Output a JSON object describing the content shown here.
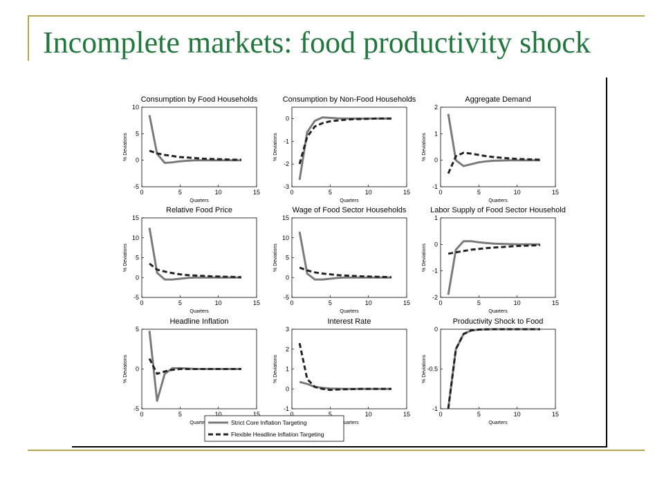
{
  "slide": {
    "title": "Incomplete markets: food productivity shock",
    "accent_color": "#1e7a3a",
    "rule_color": "#b5a64a"
  },
  "legend": {
    "strict": "Strict Core Inflation Targeting",
    "flexible": "Flexible Headline Inflation Targeting"
  },
  "chart_data": [
    {
      "type": "line",
      "title": "Consumption by Food Households",
      "xlabel": "Quarters",
      "ylabel": "% Deviations",
      "xlim": [
        0,
        15
      ],
      "ylim": [
        -5,
        10
      ],
      "xticks": [
        0,
        5,
        10,
        15
      ],
      "yticks": [
        -5,
        0,
        5,
        10
      ],
      "x": [
        1,
        2,
        3,
        4,
        5,
        6,
        7,
        8,
        9,
        10,
        11,
        12,
        13
      ],
      "series": [
        {
          "name": "Strict Core Inflation Targeting",
          "values": [
            8.5,
            1.2,
            -0.5,
            -0.4,
            -0.2,
            -0.1,
            0,
            0,
            0,
            0,
            0,
            0,
            0
          ]
        },
        {
          "name": "Flexible Headline Inflation Targeting",
          "values": [
            1.8,
            1.3,
            1.0,
            0.8,
            0.6,
            0.5,
            0.4,
            0.3,
            0.25,
            0.2,
            0.15,
            0.1,
            0.1
          ]
        }
      ]
    },
    {
      "type": "line",
      "title": "Consumption by Non-Food Households",
      "xlabel": "Quarters",
      "ylabel": "% Deviations",
      "xlim": [
        0,
        15
      ],
      "ylim": [
        -3,
        0.5
      ],
      "xticks": [
        0,
        5,
        10,
        15
      ],
      "yticks": [
        -3,
        -2,
        -1,
        0
      ],
      "x": [
        1,
        2,
        3,
        4,
        5,
        6,
        7,
        8,
        9,
        10,
        11,
        12,
        13
      ],
      "series": [
        {
          "name": "Strict Core Inflation Targeting",
          "values": [
            -2.7,
            -0.6,
            -0.1,
            0.05,
            0.03,
            0.01,
            0,
            0,
            0,
            0,
            0,
            0,
            0
          ]
        },
        {
          "name": "Flexible Headline Inflation Targeting",
          "values": [
            -2.0,
            -0.8,
            -0.35,
            -0.2,
            -0.12,
            -0.08,
            -0.05,
            -0.03,
            -0.02,
            -0.01,
            0,
            0,
            0
          ]
        }
      ]
    },
    {
      "type": "line",
      "title": "Aggregate Demand",
      "xlabel": "Quarters",
      "ylabel": "% Deviations",
      "xlim": [
        0,
        15
      ],
      "ylim": [
        -1,
        2
      ],
      "xticks": [
        0,
        5,
        10,
        15
      ],
      "yticks": [
        -1,
        0,
        1,
        2
      ],
      "x": [
        1,
        2,
        3,
        4,
        5,
        6,
        7,
        8,
        9,
        10,
        11,
        12,
        13
      ],
      "series": [
        {
          "name": "Strict Core Inflation Targeting",
          "values": [
            1.75,
            0.0,
            -0.22,
            -0.15,
            -0.08,
            -0.04,
            -0.02,
            -0.01,
            0,
            0,
            0,
            0,
            0
          ]
        },
        {
          "name": "Flexible Headline Inflation Targeting",
          "values": [
            -0.5,
            0.15,
            0.28,
            0.25,
            0.2,
            0.15,
            0.12,
            0.09,
            0.07,
            0.05,
            0.04,
            0.03,
            0.02
          ]
        }
      ]
    },
    {
      "type": "line",
      "title": "Relative Food Price",
      "xlabel": "Quarters",
      "ylabel": "% Deviations",
      "xlim": [
        0,
        15
      ],
      "ylim": [
        -5,
        15
      ],
      "xticks": [
        0,
        5,
        10,
        15
      ],
      "yticks": [
        -5,
        0,
        5,
        10,
        15
      ],
      "x": [
        1,
        2,
        3,
        4,
        5,
        6,
        7,
        8,
        9,
        10,
        11,
        12,
        13
      ],
      "series": [
        {
          "name": "Strict Core Inflation Targeting",
          "values": [
            12.5,
            1.2,
            -0.5,
            -0.5,
            -0.3,
            -0.1,
            0,
            0,
            0,
            0,
            0,
            0,
            0
          ]
        },
        {
          "name": "Flexible Headline Inflation Targeting",
          "values": [
            3.5,
            2.0,
            1.5,
            1.1,
            0.8,
            0.6,
            0.5,
            0.4,
            0.3,
            0.25,
            0.2,
            0.15,
            0.1
          ]
        }
      ]
    },
    {
      "type": "line",
      "title": "Wage of Food Sector Households",
      "xlabel": "Quarters",
      "ylabel": "% Deviations",
      "xlim": [
        0,
        15
      ],
      "ylim": [
        -5,
        15
      ],
      "xticks": [
        0,
        5,
        10,
        15
      ],
      "yticks": [
        -5,
        0,
        5,
        10,
        15
      ],
      "x": [
        1,
        2,
        3,
        4,
        5,
        6,
        7,
        8,
        9,
        10,
        11,
        12,
        13
      ],
      "series": [
        {
          "name": "Strict Core Inflation Targeting",
          "values": [
            11.5,
            1.0,
            -0.5,
            -0.5,
            -0.3,
            -0.1,
            0,
            0,
            0,
            0,
            0,
            0,
            0
          ]
        },
        {
          "name": "Flexible Headline Inflation Targeting",
          "values": [
            2.5,
            1.8,
            1.3,
            1.0,
            0.8,
            0.6,
            0.5,
            0.4,
            0.3,
            0.25,
            0.2,
            0.15,
            0.1
          ]
        }
      ]
    },
    {
      "type": "line",
      "title": "Labor Supply of Food Sector Household",
      "xlabel": "Quarters",
      "ylabel": "% Deviations",
      "xlim": [
        0,
        15
      ],
      "ylim": [
        -2,
        1
      ],
      "xticks": [
        0,
        5,
        10,
        15
      ],
      "yticks": [
        -2,
        -1,
        0,
        1
      ],
      "x": [
        1,
        2,
        3,
        4,
        5,
        6,
        7,
        8,
        9,
        10,
        11,
        12,
        13
      ],
      "series": [
        {
          "name": "Strict Core Inflation Targeting",
          "values": [
            -1.9,
            -0.2,
            0.12,
            0.12,
            0.08,
            0.05,
            0.03,
            0.02,
            0.01,
            0,
            0,
            0,
            0
          ]
        },
        {
          "name": "Flexible Headline Inflation Targeting",
          "values": [
            -0.35,
            -0.3,
            -0.25,
            -0.2,
            -0.17,
            -0.14,
            -0.12,
            -0.1,
            -0.08,
            -0.06,
            -0.05,
            -0.04,
            -0.03
          ]
        }
      ]
    },
    {
      "type": "line",
      "title": "Headline Inflation",
      "xlabel": "Quarters",
      "ylabel": "% Deviations",
      "xlim": [
        0,
        15
      ],
      "ylim": [
        -5,
        5
      ],
      "xticks": [
        0,
        5,
        10,
        15
      ],
      "yticks": [
        -5,
        0,
        5
      ],
      "x": [
        1,
        2,
        3,
        4,
        5,
        6,
        7,
        8,
        9,
        10,
        11,
        12,
        13
      ],
      "series": [
        {
          "name": "Strict Core Inflation Targeting",
          "values": [
            4.8,
            -4.0,
            -0.6,
            0.1,
            0.1,
            0.05,
            0,
            0,
            0,
            0,
            0,
            0,
            0
          ]
        },
        {
          "name": "Flexible Headline Inflation Targeting",
          "values": [
            1.3,
            -0.6,
            -0.3,
            -0.1,
            0,
            0,
            0,
            0,
            0,
            0,
            0,
            0,
            0
          ]
        }
      ]
    },
    {
      "type": "line",
      "title": "Interest Rate",
      "xlabel": "Quarters",
      "ylabel": "% Deviations",
      "xlim": [
        0,
        15
      ],
      "ylim": [
        -1,
        3
      ],
      "xticks": [
        0,
        5,
        10,
        15
      ],
      "yticks": [
        -1,
        0,
        1,
        2,
        3
      ],
      "x": [
        1,
        2,
        3,
        4,
        5,
        6,
        7,
        8,
        9,
        10,
        11,
        12,
        13
      ],
      "series": [
        {
          "name": "Strict Core Inflation Targeting",
          "values": [
            0.35,
            0.25,
            0.1,
            0.05,
            0.02,
            0.01,
            0,
            0,
            0,
            0,
            0,
            0,
            0
          ]
        },
        {
          "name": "Flexible Headline Inflation Targeting",
          "values": [
            2.3,
            0.5,
            0.1,
            0,
            -0.05,
            -0.03,
            -0.02,
            -0.01,
            0,
            0,
            0,
            0,
            0
          ]
        }
      ]
    },
    {
      "type": "line",
      "title": "Productivity Shock to Food",
      "xlabel": "Quarters",
      "ylabel": "% Deviations",
      "xlim": [
        0,
        15
      ],
      "ylim": [
        -1,
        0
      ],
      "xticks": [
        0,
        5,
        10,
        15
      ],
      "yticks": [
        -1,
        -0.5,
        0
      ],
      "x": [
        1,
        2,
        3,
        4,
        5,
        6,
        7,
        8,
        9,
        10,
        11,
        12,
        13
      ],
      "series": [
        {
          "name": "Strict Core Inflation Targeting",
          "values": [
            -1.0,
            -0.25,
            -0.06,
            -0.015,
            -0.004,
            -0.001,
            0,
            0,
            0,
            0,
            0,
            0,
            0
          ]
        },
        {
          "name": "Flexible Headline Inflation Targeting",
          "values": [
            -1.0,
            -0.25,
            -0.06,
            -0.015,
            -0.004,
            -0.001,
            0,
            0,
            0,
            0,
            0,
            0,
            0
          ]
        }
      ]
    }
  ]
}
